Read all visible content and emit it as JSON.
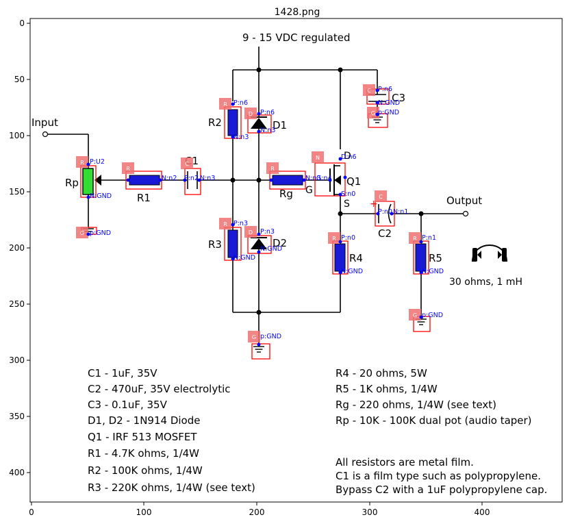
{
  "figure": {
    "title": "1428.png",
    "x_ticks": [
      "0",
      "100",
      "200",
      "300",
      "400"
    ],
    "y_ticks": [
      "0",
      "50",
      "100",
      "150",
      "200",
      "250",
      "300",
      "350",
      "400"
    ]
  },
  "schematic": {
    "supply_label": "9 - 15 VDC regulated",
    "input_label": "Input",
    "output_label": "Output",
    "headphone_spec": "30 ohms, 1 mH",
    "component_labels": {
      "rp": "Rp",
      "r1": "R1",
      "c1": "C1",
      "r2": "R2",
      "d1": "D1",
      "r3": "R3",
      "d2": "D2",
      "rg": "Rg",
      "g": "G",
      "d": "D",
      "s": "S",
      "q1": "Q1",
      "c3": "C3",
      "r4": "R4",
      "c2": "C2",
      "r5": "R5"
    },
    "parts_list_left": [
      "C1  -  1uF, 35V",
      "C2  - 470uF, 35V  electrolytic",
      "C3  -  0.1uF, 35V",
      "D1, D2  -  1N914 Diode",
      "Q1  -  IRF 513 MOSFET",
      "R1  -  4.7K ohms, 1/4W",
      "R2  -  100K ohms, 1/4W",
      "R3  -  220K ohms, 1/4W (see text)"
    ],
    "parts_list_right": [
      "R4  - 20 ohms, 5W",
      "R5  -  1K ohms, 1/4W",
      "Rg  -  220 ohms, 1/4W  (see text)",
      "Rp  -  10K - 100K dual pot (audio taper)"
    ],
    "notes": [
      "All resistors are metal film.",
      "C1 is a film type such as polypropylene.",
      "Bypass C2 with a 1uF polypropylene cap."
    ]
  },
  "annotations": {
    "tags": {
      "rp": "R",
      "rp_gnd": "G",
      "r1": "R",
      "c1": "C",
      "r2": "R",
      "d1": "D",
      "r3": "R",
      "d2": "D",
      "rg": "R",
      "q1": "N",
      "c3": "C",
      "c3_gnd": "G",
      "c2": "C",
      "r4": "R",
      "r5": "R",
      "r5_gnd": "G",
      "bot_gnd": "G"
    },
    "pins": {
      "rp_p": "P:U2",
      "rp_n": "N:GND",
      "rp_gnd": "p:GND",
      "r1_n": "N:n2",
      "c1_p": "P:n2",
      "c1_n": "N:n3",
      "r2_p": "P:n6",
      "r2_n": "N:n3",
      "d1_p": "P:n6",
      "d1_n": "N:n3",
      "r3_p": "P:n3",
      "r3_n": "N:GND",
      "d2_p": "P:n3",
      "d2_n": "N:GND",
      "rg_n": "N:n3",
      "q1_d": "D:n6",
      "q1_g": "G:n4",
      "q1_s": "S:n0",
      "c3_p": "P:n6",
      "c3_n": "N:GND",
      "c3_gnd": "p:GND",
      "c2_p": "P:n0",
      "c2_n": "N:n1",
      "r4_p": "P:n0",
      "r4_n": "N:GND",
      "r5_p": "P:n1",
      "r5_n": "N:GND",
      "r5_gnd": "p:GND",
      "bot_gnd": "p:GND"
    }
  },
  "colors": {
    "resistor_fill": "#1a1ad6",
    "pot_fill": "#33dd33",
    "bbox": "#ff0000",
    "tag_fill": "#f07070",
    "annotation": "#0000ff",
    "wire": "#000000"
  }
}
